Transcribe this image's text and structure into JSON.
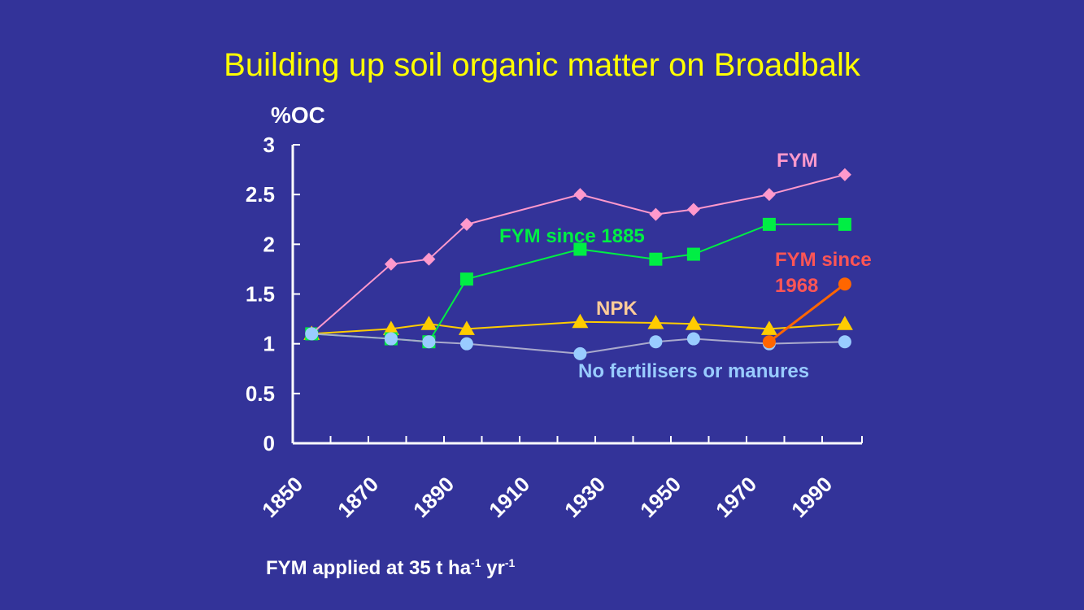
{
  "slide": {
    "title": "Building up soil organic matter on Broadbalk",
    "footnote_prefix": "FYM applied at 35 t ha",
    "footnote_sup1": "-1",
    "footnote_mid": " yr",
    "footnote_sup2": "-1"
  },
  "chart_data": {
    "type": "line",
    "title": "Building up soil organic matter on Broadbalk",
    "ylabel": "%OC",
    "xlabel": "",
    "xlim": [
      1850,
      1995
    ],
    "ylim": [
      0,
      3
    ],
    "x_ticks": [
      1850,
      1870,
      1890,
      1910,
      1930,
      1950,
      1970,
      1990
    ],
    "y_ticks": [
      "0",
      "0.5",
      "1",
      "1.5",
      "2",
      "2.5",
      "3"
    ],
    "grid": false,
    "series": [
      {
        "name": "FYM",
        "color": "#ff99cc",
        "marker": "diamond",
        "label_lines": [
          "FYM"
        ],
        "x": [
          1855,
          1876,
          1886,
          1896,
          1926,
          1946,
          1956,
          1976,
          1996
        ],
        "y": [
          1.1,
          1.8,
          1.85,
          2.2,
          2.5,
          2.3,
          2.35,
          2.5,
          2.7
        ]
      },
      {
        "name": "FYM since 1885",
        "color": "#00ee44",
        "marker": "square",
        "label_lines": [
          "FYM since 1885"
        ],
        "x": [
          1855,
          1876,
          1886,
          1896,
          1926,
          1946,
          1956,
          1976,
          1996
        ],
        "y": [
          1.1,
          1.05,
          1.02,
          1.65,
          1.95,
          1.85,
          1.9,
          2.2,
          2.2
        ]
      },
      {
        "name": "FYM since 1968",
        "color": "#ff6600",
        "label_color": "#ff5555",
        "marker": "circle",
        "label_lines": [
          "FYM since",
          "1968"
        ],
        "x": [
          1976,
          1996
        ],
        "y": [
          1.02,
          1.6
        ]
      },
      {
        "name": "NPK",
        "color": "#ffcc00",
        "label_color": "#ffcc99",
        "marker": "triangle",
        "label_lines": [
          "NPK"
        ],
        "x": [
          1855,
          1876,
          1886,
          1896,
          1926,
          1946,
          1956,
          1976,
          1996
        ],
        "y": [
          1.1,
          1.15,
          1.2,
          1.15,
          1.22,
          1.21,
          1.2,
          1.15,
          1.2
        ]
      },
      {
        "name": "No fertilisers or manures",
        "color": "#99ccff",
        "line_color": "#aaaacc",
        "marker": "circle",
        "label_lines": [
          "No fertilisers or manures"
        ],
        "x": [
          1855,
          1876,
          1886,
          1896,
          1926,
          1946,
          1956,
          1976,
          1996
        ],
        "y": [
          1.1,
          1.05,
          1.02,
          1.0,
          0.9,
          1.02,
          1.05,
          1.0,
          1.02
        ]
      }
    ]
  }
}
